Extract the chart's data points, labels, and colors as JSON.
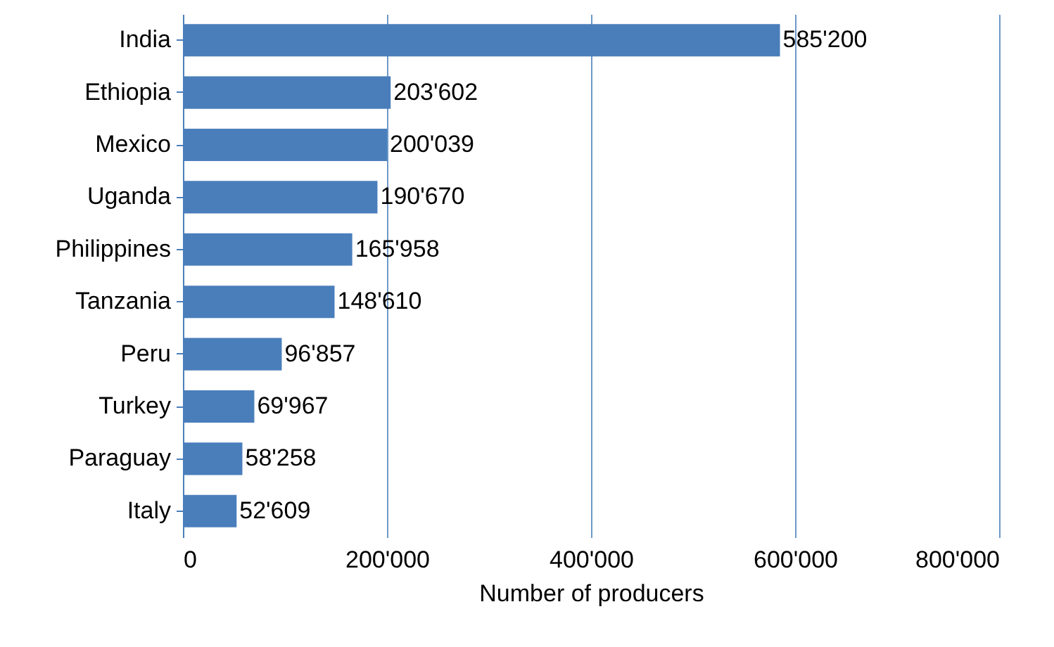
{
  "chart_data": {
    "type": "bar",
    "orientation": "horizontal",
    "xlabel": "Number of producers",
    "categories": [
      "India",
      "Ethiopia",
      "Mexico",
      "Uganda",
      "Philippines",
      "Tanzania",
      "Peru",
      "Turkey",
      "Paraguay",
      "Italy"
    ],
    "values": [
      585200,
      203602,
      200039,
      190670,
      165958,
      148610,
      96857,
      69967,
      58258,
      52609
    ],
    "value_labels": [
      "585'200",
      "203'602",
      "200'039",
      "190'670",
      "165'958",
      "148'610",
      "96'857",
      "69'967",
      "58'258",
      "52'609"
    ],
    "color": "#4a7ebb",
    "xlim": [
      0,
      800000
    ],
    "xticks": [
      0,
      {
        "value": 200000,
        "label": "200'000"
      },
      {
        "value": 400000,
        "label": "400'000"
      },
      {
        "value": 600000,
        "label": "600'000"
      },
      {
        "value": 800000,
        "label": "800'000"
      }
    ],
    "grid": "x"
  }
}
